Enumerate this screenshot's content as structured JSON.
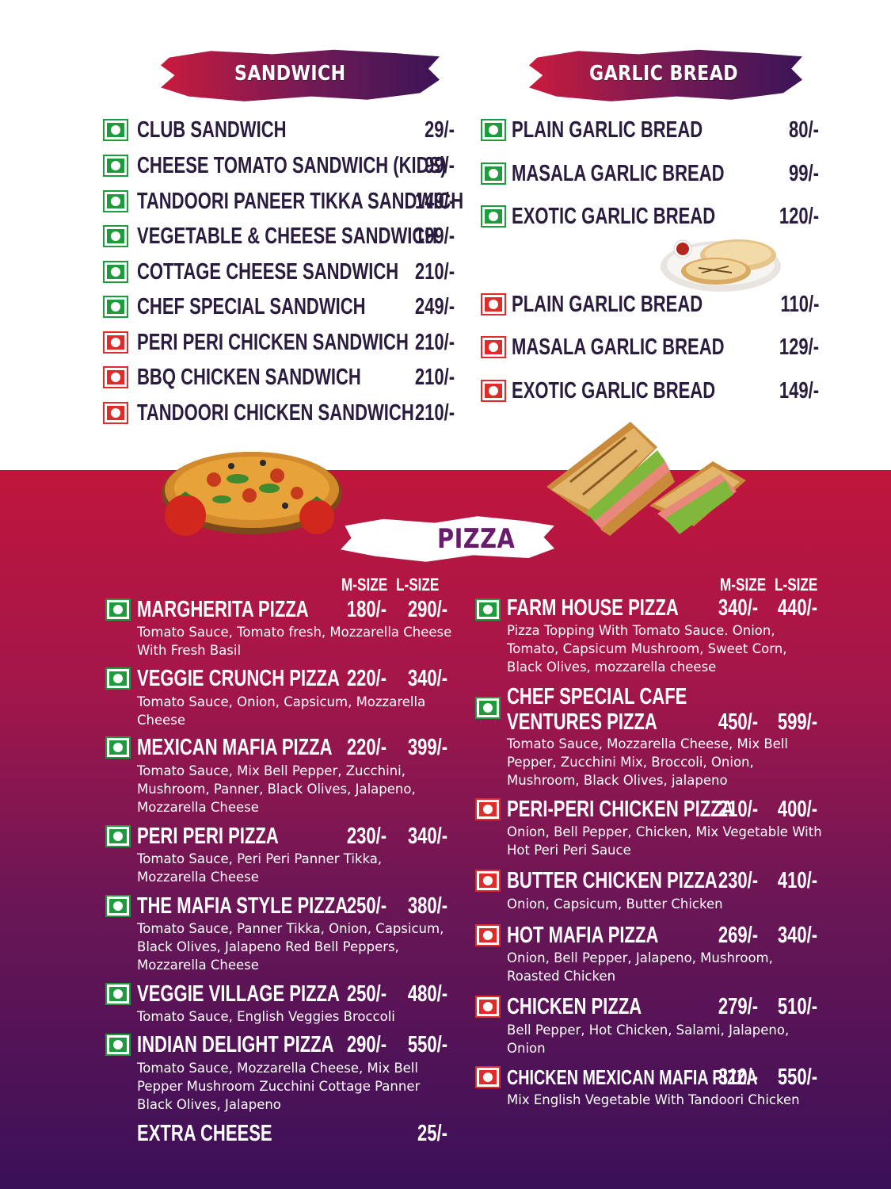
{
  "sandwich": {
    "title": "SANDWICH",
    "items": [
      {
        "name": "CLUB SANDWICH",
        "price": "29/-",
        "type": "veg"
      },
      {
        "name": "CHEESE TOMATO SANDWICH (KIDS)",
        "price": "99/-",
        "type": "veg"
      },
      {
        "name": "TANDOORI PANEER TIKKA SANDWICH",
        "price": "149/-",
        "type": "veg"
      },
      {
        "name": "VEGETABLE & CHEESE SANDWICH",
        "price": "199/-",
        "type": "veg"
      },
      {
        "name": "COTTAGE CHEESE SANDWICH",
        "price": "210/-",
        "type": "veg"
      },
      {
        "name": "CHEF SPECIAL SANDWICH",
        "price": "249/-",
        "type": "veg"
      },
      {
        "name": "PERI PERI CHICKEN SANDWICH",
        "price": "210/-",
        "type": "non-veg"
      },
      {
        "name": "BBQ CHICKEN SANDWICH",
        "price": "210/-",
        "type": "non-veg"
      },
      {
        "name": "TANDOORI CHICKEN SANDWICH",
        "price": "210/-",
        "type": "non-veg"
      }
    ]
  },
  "garlic_bread": {
    "title": "GARLIC BREAD",
    "items": [
      {
        "name": "PLAIN GARLIC BREAD",
        "price": "80/-",
        "type": "veg"
      },
      {
        "name": "MASALA GARLIC BREAD",
        "price": "99/-",
        "type": "veg"
      },
      {
        "name": "EXOTIC GARLIC BREAD",
        "price": "120/-",
        "type": "veg"
      },
      {
        "name": "PLAIN GARLIC BREAD",
        "price": "110/-",
        "type": "non-veg"
      },
      {
        "name": "MASALA GARLIC BREAD",
        "price": "129/-",
        "type": "non-veg"
      },
      {
        "name": "EXOTIC GARLIC BREAD",
        "price": "149/-",
        "type": "non-veg"
      }
    ]
  },
  "pizza": {
    "title": "PIZZA",
    "size_header": {
      "m": "M-SIZE",
      "l": "L-SIZE"
    },
    "left": [
      {
        "name": "MARGHERITA PIZZA",
        "m": "180/-",
        "l": "290/-",
        "type": "veg",
        "desc": "Tomato Sauce, Tomato fresh, Mozzarella Cheese With Fresh Basil"
      },
      {
        "name": "VEGGIE CRUNCH PIZZA",
        "m": "220/-",
        "l": "340/-",
        "type": "veg",
        "desc": "Tomato Sauce, Onion, Capsicum, Mozzarella Cheese"
      },
      {
        "name": "MEXICAN MAFIA PIZZA",
        "m": "220/-",
        "l": "399/-",
        "type": "veg",
        "desc": "Tomato Sauce, Mix Bell Pepper, Zucchini, Mushroom, Panner, Black Olives, Jalapeno, Mozzarella Cheese"
      },
      {
        "name": "PERI PERI PIZZA",
        "m": "230/-",
        "l": "340/-",
        "type": "veg",
        "desc": "Tomato Sauce, Peri Peri Panner Tikka, Mozzarella Cheese"
      },
      {
        "name": "THE MAFIA STYLE PIZZA",
        "m": "250/-",
        "l": "380/-",
        "type": "veg",
        "desc": "Tomato Sauce, Panner Tikka, Onion, Capsicum, Black Olives, Jalapeno Red Bell Peppers, Mozzarella Cheese"
      },
      {
        "name": "VEGGIE VILLAGE PIZZA",
        "m": "250/-",
        "l": "480/-",
        "type": "veg",
        "desc": "Tomato Sauce, English Veggies Broccoli"
      },
      {
        "name": "INDIAN DELIGHT PIZZA",
        "m": "290/-",
        "l": "550/-",
        "type": "veg",
        "desc": "Tomato Sauce, Mozzarella Cheese, Mix Bell Pepper Mushroom Zucchini Cottage Panner Black Olives, Jalapeno"
      }
    ],
    "extra": {
      "name": "EXTRA CHEESE",
      "price": "25/-"
    },
    "right": [
      {
        "name": "FARM HOUSE PIZZA",
        "m": "340/-",
        "l": "440/-",
        "type": "veg",
        "desc": "Pizza Topping With Tomato Sauce. Onion, Tomato, Capsicum Mushroom, Sweet Corn, Black Olives, mozzarella cheese"
      },
      {
        "name1": "CHEF SPECIAL CAFE",
        "name2": "VENTURES PIZZA",
        "m": "450/-",
        "l": "599/-",
        "type": "veg",
        "desc": "Tomato Sauce, Mozzarella Cheese, Mix Bell Pepper, Zucchini Mix, Broccoli, Onion, Mushroom, Black Olives, jalapeno"
      },
      {
        "name": "PERI-PERI CHICKEN PIZZA",
        "m": "210/-",
        "l": "400/-",
        "type": "non-veg",
        "desc": "Onion, Bell Pepper, Chicken, Mix Vegetable With Hot Peri Peri Sauce"
      },
      {
        "name": "BUTTER CHICKEN PIZZA",
        "m": "230/-",
        "l": "410/-",
        "type": "non-veg",
        "desc": "Onion, Capsicum, Butter Chicken"
      },
      {
        "name": "HOT MAFIA PIZZA",
        "m": "269/-",
        "l": "340/-",
        "type": "non-veg",
        "desc": "Onion, Bell Pepper, Jalapeno, Mushroom, Roasted Chicken"
      },
      {
        "name": "CHICKEN PIZZA",
        "m": "279/-",
        "l": "510/-",
        "type": "non-veg",
        "desc": "Bell Pepper, Hot Chicken, Salami, Jalapeno, Onion"
      },
      {
        "name": "CHICKEN MEXICAN MAFIA PIZZA",
        "m": "310/-",
        "l": "550/-",
        "type": "non-veg",
        "desc": "Mix English Vegetable With Tandoori Chicken"
      }
    ]
  },
  "colors": {
    "veg": "#1e9b3c",
    "non_veg": "#e02b2b",
    "accent": "#c0163c",
    "deep": "#3a1058",
    "title_purple": "#6a1b6e"
  },
  "icons": {
    "veg": "veg-mark-icon",
    "non_veg": "non-veg-mark-icon"
  }
}
